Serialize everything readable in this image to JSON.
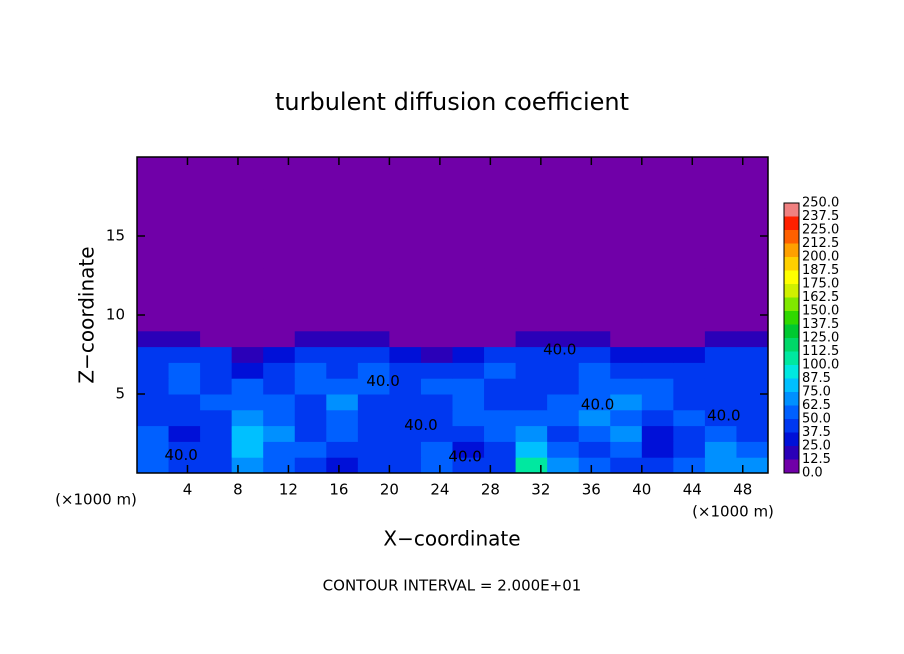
{
  "chart_data": {
    "type": "contour",
    "title": "turbulent diffusion coefficient",
    "x_label": "X−coordinate",
    "y_label": "Z−coordinate",
    "x_unit": "(×1000 m)",
    "x_unit_right": "(×1000 m)",
    "footer": "CONTOUR INTERVAL = 2.000E+01",
    "xlim": [
      0,
      50
    ],
    "ylim": [
      0,
      20
    ],
    "xticks": [
      4,
      8,
      12,
      16,
      20,
      24,
      28,
      32,
      36,
      40,
      44,
      48
    ],
    "yticks": [
      5,
      10,
      15
    ],
    "x": [
      1.25,
      3.75,
      6.25,
      8.75,
      11.25,
      13.75,
      16.25,
      18.75,
      21.25,
      23.75,
      26.25,
      28.75,
      31.25,
      33.75,
      36.25,
      38.75,
      41.25,
      43.75,
      46.25,
      48.75
    ],
    "y": [
      0.5,
      1.5,
      2.5,
      3.5,
      4.5,
      5.5,
      6.5,
      7.5,
      8.5,
      9.5,
      10.5,
      11.5,
      12.5,
      13.5,
      14.5,
      15.5,
      16.5,
      17.5,
      18.5,
      19.5
    ],
    "values": [
      [
        50,
        37.5,
        37.5,
        62.5,
        50,
        37.5,
        25,
        37.5,
        37.5,
        50,
        37.5,
        37.5,
        100,
        62.5,
        50,
        37.5,
        37.5,
        50,
        62.5,
        62.5
      ],
      [
        50,
        37.5,
        37.5,
        75,
        50,
        50,
        37.5,
        37.5,
        37.5,
        50,
        25,
        37.5,
        75,
        50,
        37.5,
        50,
        25,
        37.5,
        62.5,
        50
      ],
      [
        50,
        25,
        37.5,
        75,
        62.5,
        37.5,
        50,
        37.5,
        37.5,
        37.5,
        37.5,
        50,
        62.5,
        37.5,
        50,
        62.5,
        25,
        37.5,
        50,
        37.5
      ],
      [
        37.5,
        37.5,
        37.5,
        62.5,
        50,
        37.5,
        50,
        37.5,
        37.5,
        37.5,
        50,
        50,
        50,
        50,
        62.5,
        50,
        37.5,
        50,
        37.5,
        37.5
      ],
      [
        37.5,
        37.5,
        50,
        50,
        50,
        37.5,
        62.5,
        37.5,
        37.5,
        37.5,
        50,
        37.5,
        37.5,
        50,
        50,
        62.5,
        50,
        37.5,
        37.5,
        37.5
      ],
      [
        37.5,
        50,
        37.5,
        50,
        37.5,
        50,
        50,
        50,
        37.5,
        50,
        50,
        37.5,
        37.5,
        37.5,
        50,
        50,
        50,
        37.5,
        37.5,
        37.5
      ],
      [
        37.5,
        50,
        37.5,
        25,
        37.5,
        50,
        37.5,
        50,
        37.5,
        37.5,
        37.5,
        50,
        37.5,
        37.5,
        50,
        37.5,
        37.5,
        37.5,
        37.5,
        37.5
      ],
      [
        37.5,
        37.5,
        37.5,
        12.5,
        25,
        37.5,
        37.5,
        37.5,
        25,
        12.5,
        25,
        37.5,
        37.5,
        37.5,
        37.5,
        25,
        25,
        25,
        37.5,
        37.5
      ],
      [
        12.5,
        12.5,
        0,
        0,
        0,
        12.5,
        12.5,
        12.5,
        0,
        0,
        0,
        0,
        12.5,
        12.5,
        12.5,
        0,
        0,
        0,
        12.5,
        12.5
      ],
      [
        0,
        0,
        0,
        0,
        0,
        0,
        0,
        0,
        0,
        0,
        0,
        0,
        0,
        0,
        0,
        0,
        0,
        0,
        0,
        0
      ],
      [
        0,
        0,
        0,
        0,
        0,
        0,
        0,
        0,
        0,
        0,
        0,
        0,
        0,
        0,
        0,
        0,
        0,
        0,
        0,
        0
      ],
      [
        0,
        0,
        0,
        0,
        0,
        0,
        0,
        0,
        0,
        0,
        0,
        0,
        0,
        0,
        0,
        0,
        0,
        0,
        0,
        0
      ],
      [
        0,
        0,
        0,
        0,
        0,
        0,
        0,
        0,
        0,
        0,
        0,
        0,
        0,
        0,
        0,
        0,
        0,
        0,
        0,
        0
      ],
      [
        0,
        0,
        0,
        0,
        0,
        0,
        0,
        0,
        0,
        0,
        0,
        0,
        0,
        0,
        0,
        0,
        0,
        0,
        0,
        0
      ],
      [
        0,
        0,
        0,
        0,
        0,
        0,
        0,
        0,
        0,
        0,
        0,
        0,
        0,
        0,
        0,
        0,
        0,
        0,
        0,
        0
      ],
      [
        0,
        0,
        0,
        0,
        0,
        0,
        0,
        0,
        0,
        0,
        0,
        0,
        0,
        0,
        0,
        0,
        0,
        0,
        0,
        0
      ],
      [
        0,
        0,
        0,
        0,
        0,
        0,
        0,
        0,
        0,
        0,
        0,
        0,
        0,
        0,
        0,
        0,
        0,
        0,
        0,
        0
      ],
      [
        0,
        0,
        0,
        0,
        0,
        0,
        0,
        0,
        0,
        0,
        0,
        0,
        0,
        0,
        0,
        0,
        0,
        0,
        0,
        0
      ],
      [
        0,
        0,
        0,
        0,
        0,
        0,
        0,
        0,
        0,
        0,
        0,
        0,
        0,
        0,
        0,
        0,
        0,
        0,
        0,
        0
      ],
      [
        0,
        0,
        0,
        0,
        0,
        0,
        0,
        0,
        0,
        0,
        0,
        0,
        0,
        0,
        0,
        0,
        0,
        0,
        0,
        0
      ]
    ],
    "levels": [
      {
        "value": 0,
        "label": "0.0"
      },
      12.5,
      25.0,
      37.5,
      50.0,
      62.5,
      75.0,
      87.5,
      {
        "value": 100,
        "label": "100.0"
      },
      112.5,
      125.0,
      137.5,
      150.0,
      162.5,
      175.0,
      187.5,
      {
        "value": 200,
        "label": "200.0"
      },
      212.5,
      225.0,
      237.5,
      {
        "value": 250,
        "label": "250.0"
      }
    ],
    "level_labels": [
      "0.0",
      "12.5",
      "25.0",
      "37.5",
      "50.0",
      "62.5",
      "75.0",
      "87.5",
      "100.0",
      "112.5",
      "125.0",
      "137.5",
      "150.0",
      "162.5",
      "175.0",
      "187.5",
      "200.0",
      "212.5",
      "225.0",
      "237.5",
      "250.0"
    ],
    "colors": [
      "#7000a8",
      "#2a00b8",
      "#0010d8",
      "#0038f0",
      "#0060ff",
      "#0090ff",
      "#00c0ff",
      "#00e8e0",
      "#00e8a0",
      "#00d868",
      "#00c830",
      "#30d800",
      "#80e800",
      "#d0f000",
      "#ffff00",
      "#ffd000",
      "#ffa000",
      "#ff6000",
      "#ff2000",
      "#f08080"
    ],
    "contour_labels": [
      {
        "text": "40.0",
        "x": 3.5,
        "y": 1.1
      },
      {
        "text": "40.0",
        "x": 19.5,
        "y": 5.8
      },
      {
        "text": "40.0",
        "x": 22.5,
        "y": 3.0
      },
      {
        "text": "40.0",
        "x": 26.0,
        "y": 1.0
      },
      {
        "text": "40.0",
        "x": 33.5,
        "y": 7.8
      },
      {
        "text": "40.0",
        "x": 36.5,
        "y": 4.3
      },
      {
        "text": "40.0",
        "x": 46.5,
        "y": 3.6
      }
    ]
  }
}
